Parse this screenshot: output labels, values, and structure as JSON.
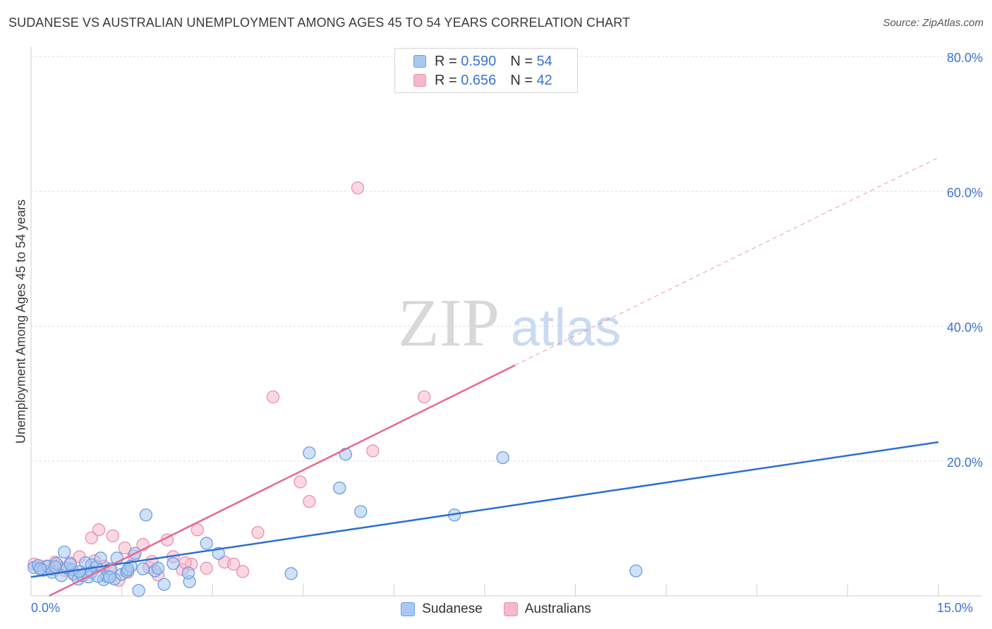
{
  "title": "SUDANESE VS AUSTRALIAN UNEMPLOYMENT AMONG AGES 45 TO 54 YEARS CORRELATION CHART",
  "source": "Source: ZipAtlas.com",
  "watermark": {
    "zip": "ZIP",
    "atlas": "atlas"
  },
  "legend": {
    "r_label": "R = ",
    "n_label": "N = ",
    "series": [
      {
        "name": "Sudanese",
        "r": "0.590",
        "n": "54"
      },
      {
        "name": "Australians",
        "r": "0.656",
        "n": "42"
      }
    ]
  },
  "colors": {
    "sudanese_fill": "#a8c8f0",
    "sudanese_stroke": "#6d9de0",
    "sudanese_line": "#2b6fd0",
    "australians_fill": "#f5b8cc",
    "australians_stroke": "#eb8fae",
    "australians_line": "#e8688f",
    "axis_text": "#3b73d2",
    "grid": "#dddddd"
  },
  "chart_data": {
    "type": "scatter",
    "title": "SUDANESE VS AUSTRALIAN UNEMPLOYMENT AMONG AGES 45 TO 54 YEARS CORRELATION CHART",
    "xlabel": "",
    "ylabel": "Unemployment Among Ages 45 to 54 years",
    "xlim": [
      0,
      15
    ],
    "ylim": [
      0,
      80
    ],
    "x_tick_labels": [
      "0.0%",
      "15.0%"
    ],
    "y_ticks": [
      20,
      40,
      60,
      80
    ],
    "y_tick_labels": [
      "20.0%",
      "40.0%",
      "60.0%",
      "80.0%"
    ],
    "grid": true,
    "legend_position": "top-center",
    "series": [
      {
        "name": "Sudanese",
        "points": [
          [
            0.05,
            4.2
          ],
          [
            0.12,
            4.5
          ],
          [
            0.2,
            3.8
          ],
          [
            0.28,
            4.4
          ],
          [
            0.35,
            3.5
          ],
          [
            0.42,
            4.8
          ],
          [
            0.5,
            3.0
          ],
          [
            0.55,
            6.5
          ],
          [
            0.6,
            4.1
          ],
          [
            0.68,
            3.9
          ],
          [
            0.72,
            3.2
          ],
          [
            0.78,
            2.5
          ],
          [
            0.85,
            3.0
          ],
          [
            0.9,
            4.9
          ],
          [
            0.95,
            2.8
          ],
          [
            1.0,
            4.6
          ],
          [
            1.08,
            4.3
          ],
          [
            1.15,
            5.6
          ],
          [
            1.2,
            2.4
          ],
          [
            1.25,
            2.9
          ],
          [
            1.32,
            4.0
          ],
          [
            1.38,
            2.5
          ],
          [
            1.42,
            5.6
          ],
          [
            1.5,
            3.2
          ],
          [
            1.58,
            3.6
          ],
          [
            1.65,
            4.4
          ],
          [
            1.72,
            6.3
          ],
          [
            1.78,
            0.8
          ],
          [
            1.85,
            4.0
          ],
          [
            1.9,
            12.0
          ],
          [
            2.05,
            3.7
          ],
          [
            2.2,
            1.7
          ],
          [
            2.35,
            4.8
          ],
          [
            2.62,
            2.1
          ],
          [
            2.6,
            3.4
          ],
          [
            2.9,
            7.8
          ],
          [
            3.1,
            6.3
          ],
          [
            4.3,
            3.3
          ],
          [
            4.6,
            21.2
          ],
          [
            5.1,
            16.0
          ],
          [
            5.2,
            21.0
          ],
          [
            5.45,
            12.5
          ],
          [
            7.0,
            12.0
          ],
          [
            7.8,
            20.5
          ],
          [
            10.0,
            3.7
          ],
          [
            1.0,
            3.5
          ],
          [
            1.3,
            2.8
          ],
          [
            0.65,
            4.7
          ],
          [
            0.15,
            4.0
          ],
          [
            0.4,
            4.3
          ],
          [
            1.1,
            2.9
          ],
          [
            2.1,
            4.1
          ],
          [
            0.8,
            3.6
          ],
          [
            1.6,
            3.9
          ]
        ]
      },
      {
        "name": "Australians",
        "points": [
          [
            0.05,
            4.7
          ],
          [
            0.15,
            4.2
          ],
          [
            0.25,
            4.4
          ],
          [
            0.35,
            3.9
          ],
          [
            0.45,
            4.5
          ],
          [
            0.55,
            3.8
          ],
          [
            0.65,
            4.9
          ],
          [
            0.8,
            5.8
          ],
          [
            0.9,
            3.4
          ],
          [
            1.0,
            8.6
          ],
          [
            1.12,
            9.8
          ],
          [
            1.2,
            4.4
          ],
          [
            1.35,
            8.9
          ],
          [
            1.45,
            2.3
          ],
          [
            1.55,
            7.1
          ],
          [
            1.7,
            5.9
          ],
          [
            1.85,
            7.6
          ],
          [
            1.95,
            4.2
          ],
          [
            2.1,
            3.1
          ],
          [
            2.25,
            8.3
          ],
          [
            2.35,
            5.8
          ],
          [
            2.5,
            3.9
          ],
          [
            2.65,
            4.7
          ],
          [
            2.75,
            9.8
          ],
          [
            2.9,
            4.1
          ],
          [
            3.2,
            5.0
          ],
          [
            3.35,
            4.7
          ],
          [
            3.5,
            3.6
          ],
          [
            3.75,
            9.4
          ],
          [
            4.0,
            29.5
          ],
          [
            4.45,
            16.9
          ],
          [
            4.6,
            14.0
          ],
          [
            5.4,
            60.5
          ],
          [
            5.65,
            21.5
          ],
          [
            6.5,
            29.5
          ],
          [
            1.6,
            3.5
          ],
          [
            0.7,
            3.2
          ],
          [
            1.05,
            5.2
          ],
          [
            2.0,
            5.1
          ],
          [
            2.55,
            4.9
          ],
          [
            0.4,
            5.0
          ],
          [
            1.3,
            4.0
          ]
        ]
      }
    ],
    "trendlines": [
      {
        "series": "Sudanese",
        "from": [
          0,
          2.8
        ],
        "to": [
          15,
          22.8
        ],
        "dashed_extension": false
      },
      {
        "series": "Australians",
        "from": [
          0.3,
          0.0
        ],
        "to": [
          8.0,
          34.2
        ],
        "extension_to": [
          15,
          65.0
        ],
        "dashed_extension": true
      }
    ]
  }
}
